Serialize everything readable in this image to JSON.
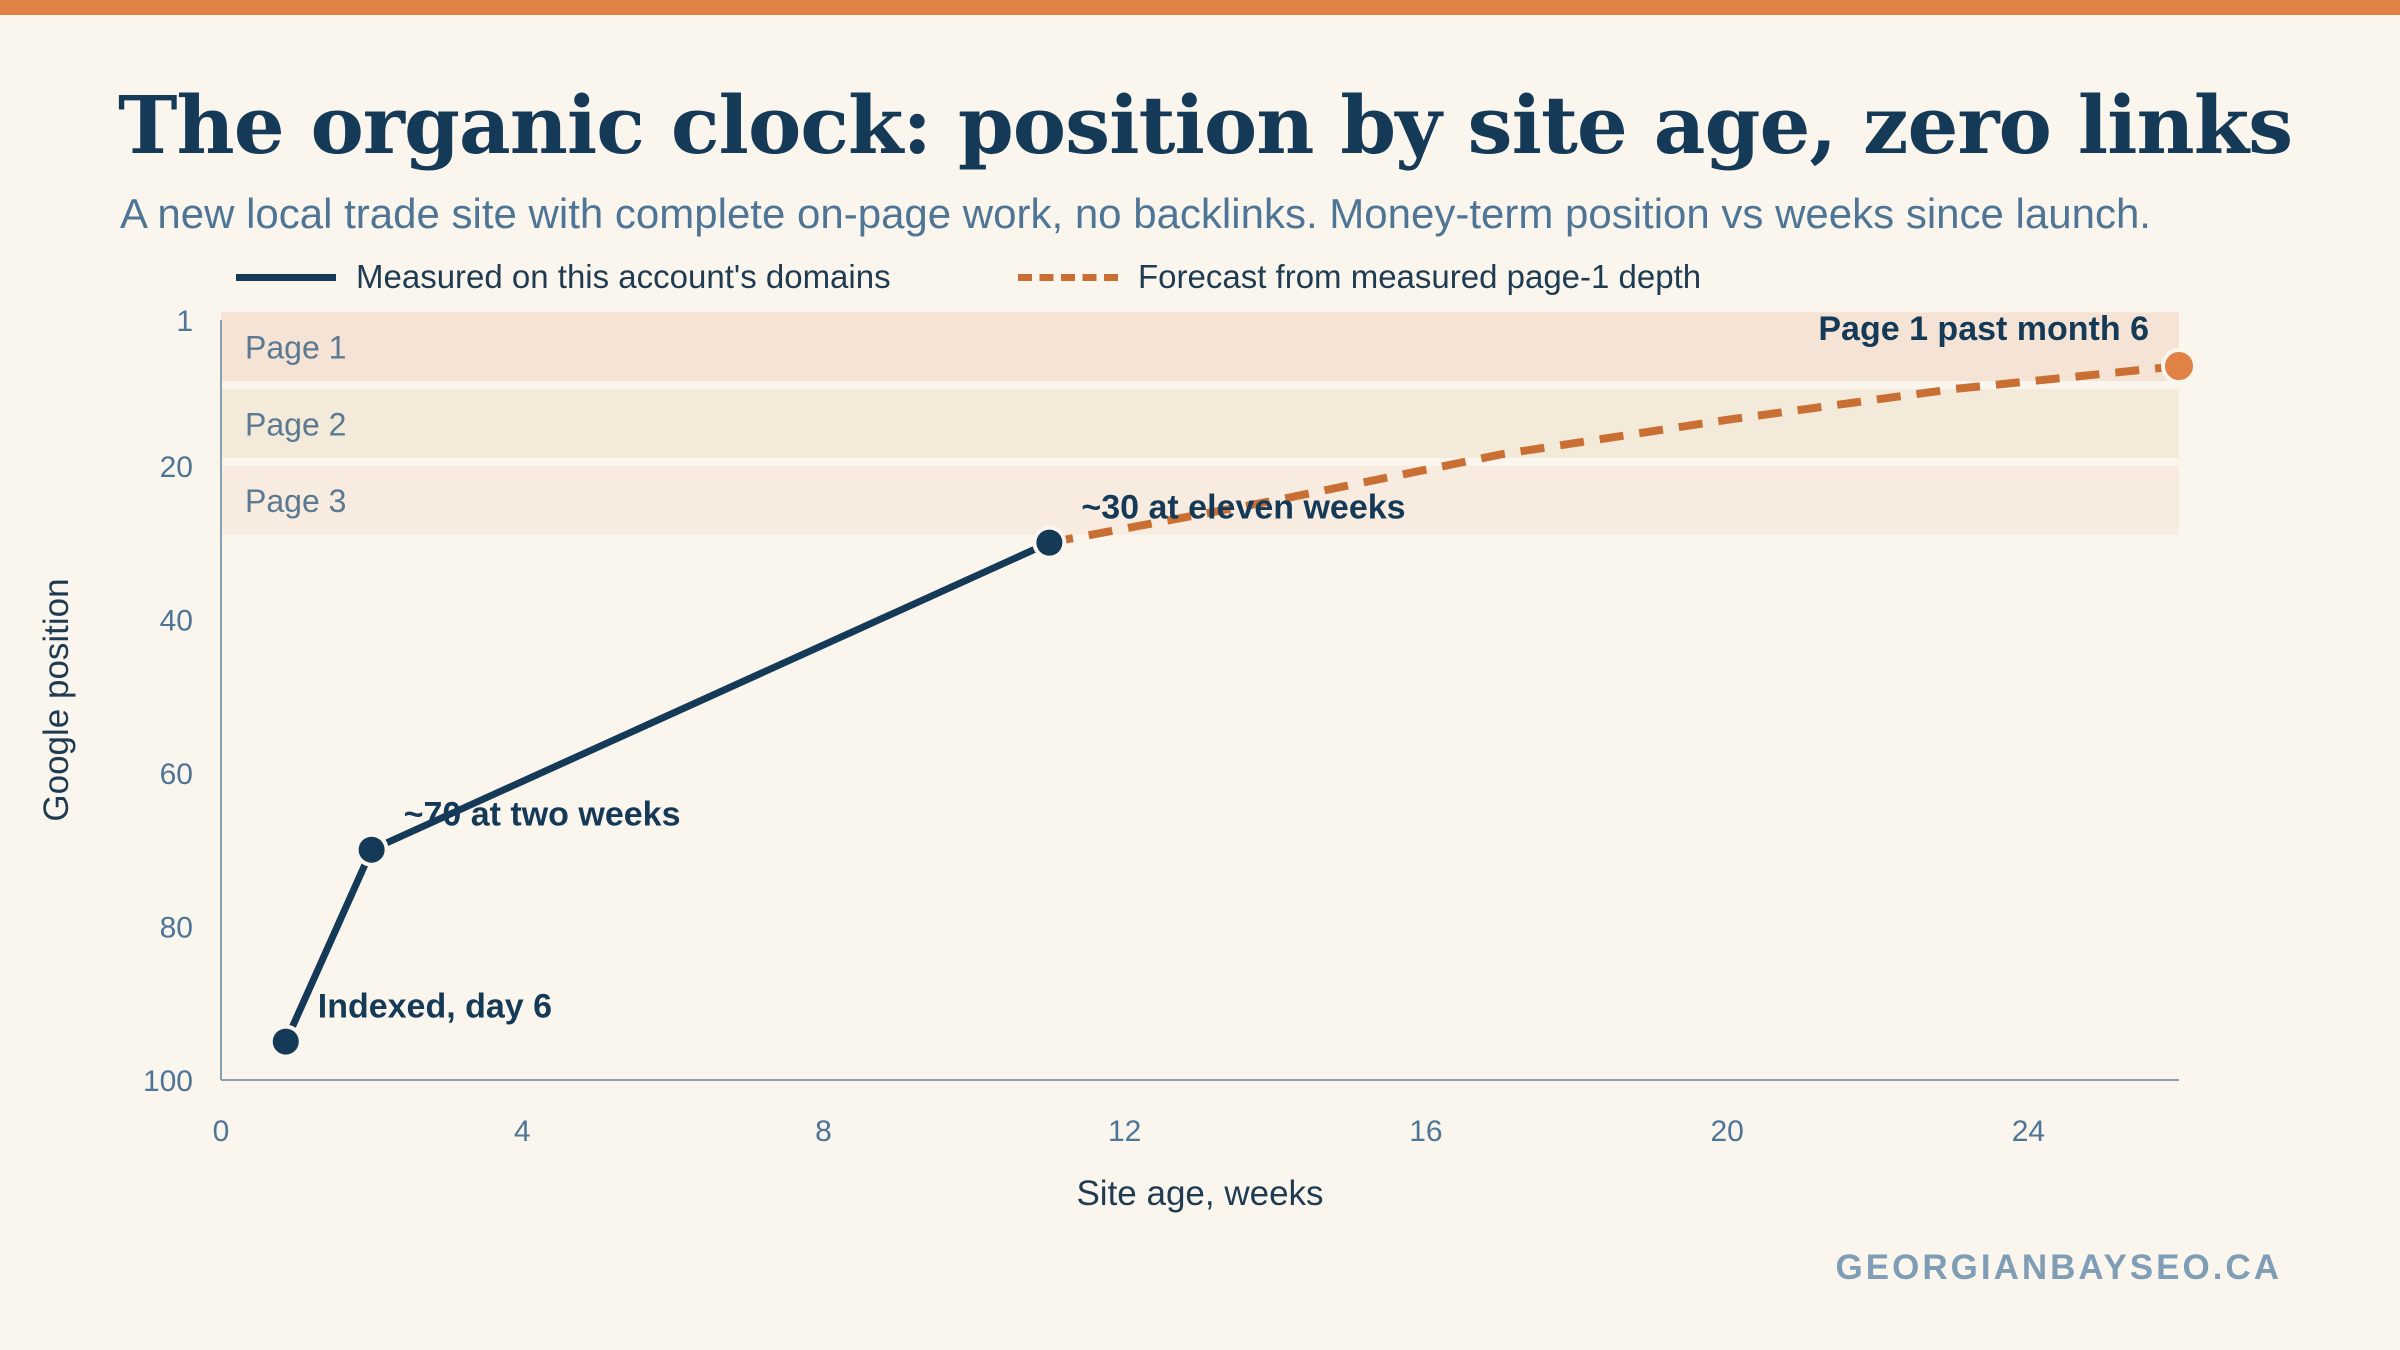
{
  "title": "The organic clock: position by site age, zero links",
  "subtitle": "A new local trade site with complete on-page work, no backlinks. Money-term position vs weeks since launch.",
  "footer": "GEORGIANBAYSEO.CA",
  "colors": {
    "accent": "#e08145",
    "measured": "#153a57",
    "forecast": "#c96f33",
    "page1_band": "#f5e4d5",
    "page2_band": "#f3ead9",
    "page3_band": "#f8ece0"
  },
  "chart_data": {
    "type": "line",
    "xlabel": "Site age, weeks",
    "ylabel": "Google position",
    "xlim": [
      0,
      26
    ],
    "ylim": [
      100,
      1
    ],
    "y_inverted": true,
    "x_ticks": [
      0,
      4,
      8,
      12,
      16,
      20,
      24
    ],
    "y_ticks": [
      1,
      20,
      40,
      60,
      80,
      100
    ],
    "grid": false,
    "legend": "top",
    "bands": [
      {
        "label": "Page 1",
        "from": 1,
        "to": 10
      },
      {
        "label": "Page 2",
        "from": 11,
        "to": 20
      },
      {
        "label": "Page 3",
        "from": 21,
        "to": 30
      }
    ],
    "series": [
      {
        "name": "Measured on this account's domains",
        "style": "solid",
        "x": [
          0.86,
          2,
          11
        ],
        "y": [
          95,
          70,
          30
        ]
      },
      {
        "name": "Forecast from measured page-1 depth",
        "style": "dashed",
        "x": [
          11,
          14,
          17,
          20,
          23,
          26
        ],
        "y": [
          30,
          24.5,
          18.5,
          14,
          10,
          7
        ]
      }
    ],
    "annotations": [
      {
        "text": "Indexed, day 6",
        "x": 0.86,
        "y": 95
      },
      {
        "text": "~70 at two weeks",
        "x": 2,
        "y": 70
      },
      {
        "text": "~30 at eleven weeks",
        "x": 11,
        "y": 30
      },
      {
        "text": "Page 1 past month 6",
        "x": 26,
        "y": 7
      }
    ]
  }
}
